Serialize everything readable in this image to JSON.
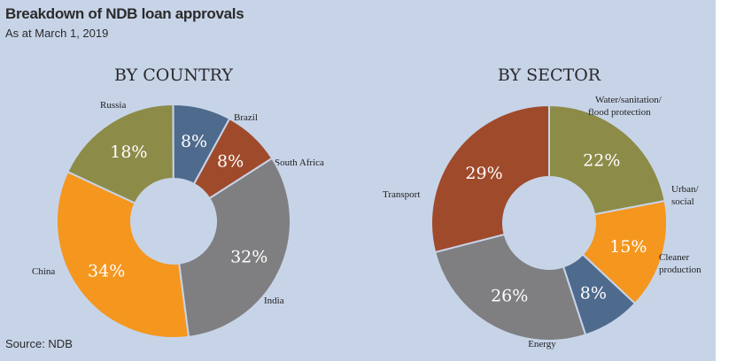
{
  "header": {
    "title": "Breakdown of NDB loan approvals",
    "subtitle": "As at March 1, 2019",
    "source": "Source: NDB"
  },
  "colors": {
    "olive": "#8d8b48",
    "slate_blue": "#4e6a8d",
    "rust": "#a04a2c",
    "gray": "#7f7f81",
    "orange": "#f5961e",
    "background": "#c7d4e8"
  },
  "chart_data": [
    {
      "type": "pie",
      "title": "BY COUNTRY",
      "donut": true,
      "slices": [
        {
          "label": "Russia",
          "value": 18,
          "text": "18%",
          "color": "#8d8b48"
        },
        {
          "label": "Brazil",
          "value": 8,
          "text": "8%",
          "color": "#4e6a8d"
        },
        {
          "label": "South Africa",
          "value": 8,
          "text": "8%",
          "color": "#a04a2c"
        },
        {
          "label": "India",
          "value": 32,
          "text": "32%",
          "color": "#7f7f81"
        },
        {
          "label": "China",
          "value": 34,
          "text": "34%",
          "color": "#f5961e"
        }
      ]
    },
    {
      "type": "pie",
      "title": "BY SECTOR",
      "donut": true,
      "slices": [
        {
          "label": "Water/sanitation/ flood protection",
          "value": 22,
          "text": "22%",
          "color": "#8d8b48"
        },
        {
          "label": "Urban/ social",
          "value": 15,
          "text": "15%",
          "color": "#f5961e"
        },
        {
          "label": "Cleaner production",
          "value": 8,
          "text": "8%",
          "color": "#4e6a8d"
        },
        {
          "label": "Energy",
          "value": 26,
          "text": "26%",
          "color": "#7f7f81"
        },
        {
          "label": "Transport",
          "value": 29,
          "text": "29%",
          "color": "#a04a2c"
        }
      ]
    }
  ]
}
